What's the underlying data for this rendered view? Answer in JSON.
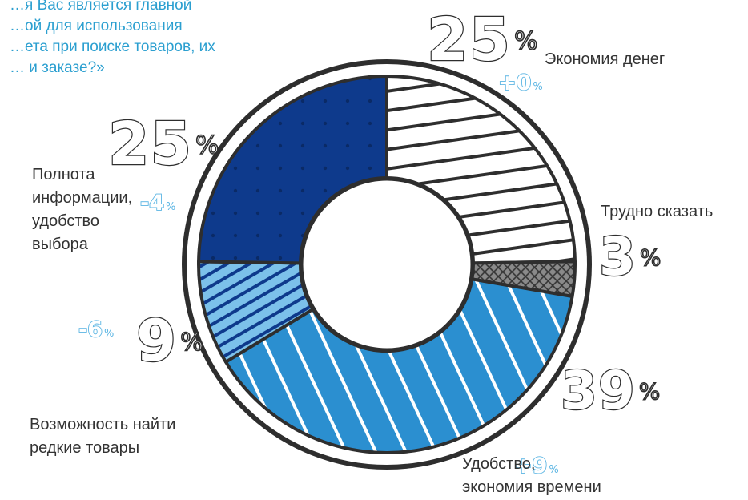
{
  "chart_data": {
    "type": "pie",
    "title": "…я Вас является главной\n…ой для использования\n…ета при поиске товаров, их\n… и заказе?»",
    "slices": [
      {
        "label": "Экономия денег",
        "value": 25,
        "value_text": "25",
        "change": "+0",
        "color": "#ffffff",
        "pattern": "stripes-dark"
      },
      {
        "label": "Трудно сказать",
        "value": 3,
        "value_text": "3",
        "change": "",
        "color": "#8a8a8a",
        "pattern": "crosshatch"
      },
      {
        "label": "Удобство,\nэкономия времени",
        "value": 39,
        "value_text": "39",
        "change": "+9",
        "color": "#2b8fd0",
        "pattern": "stripes-white"
      },
      {
        "label": "Возможность найти\nредкие товары",
        "value": 9,
        "value_text": "9",
        "change": "-6",
        "color": "#7cc1ea",
        "pattern": "stripes-navy"
      },
      {
        "label": "Полнота\nинформации,\nудобство\nвыбора",
        "value": 25,
        "value_text": "25",
        "change": "-4",
        "color": "#0e3a8c",
        "pattern": "dots"
      }
    ],
    "percent_sign": "%",
    "change_suffix": "%",
    "legend": "none"
  }
}
